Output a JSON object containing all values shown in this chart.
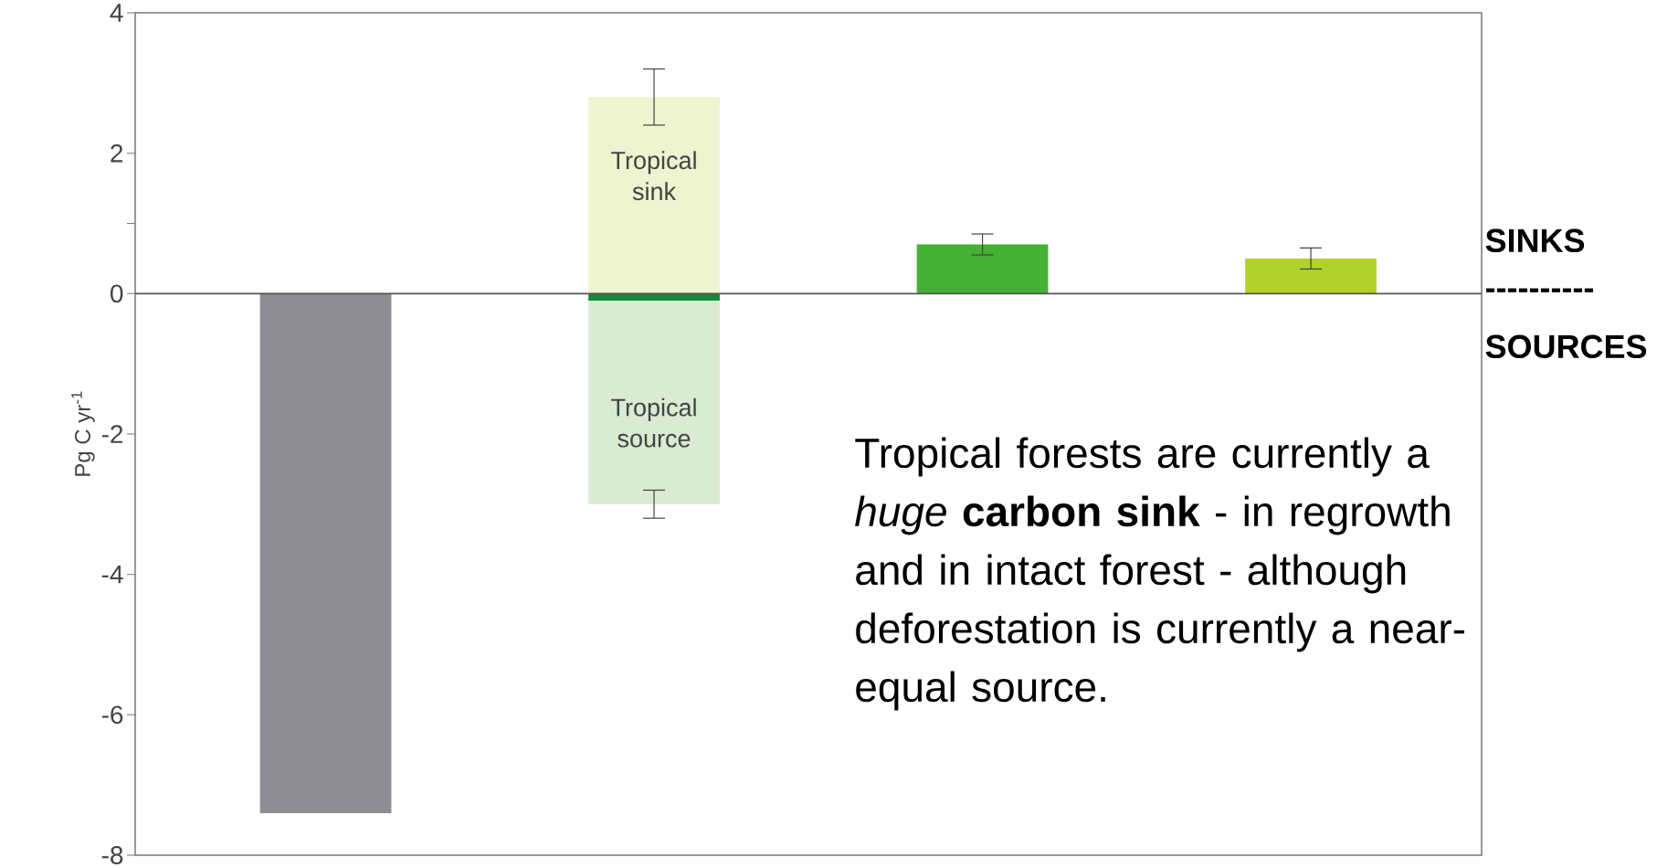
{
  "chart_data": {
    "type": "bar",
    "stacked": true,
    "ylabel": "Pg C yr$^{-1}$",
    "categories": [
      null,
      null,
      null,
      null
    ],
    "ylim": [
      -8,
      4
    ],
    "yticks": [
      -8,
      -6,
      -4,
      -2,
      0,
      {
        "value": 1,
        "label": null
      },
      2,
      4
    ],
    "series": [
      {
        "color": "#8e8d93",
        "values": [
          -7.4,
          null,
          null,
          null
        ]
      },
      {
        "name": "Tropical sink",
        "color": "#eef4cf",
        "values": [
          null,
          2.8,
          null,
          null
        ],
        "errors": [
          null,
          0.4,
          null,
          null
        ]
      },
      {
        "color": "#14893c",
        "values": [
          null,
          -0.1,
          null,
          null
        ]
      },
      {
        "name": "Tropical source",
        "color": "#d9ebd2",
        "values": [
          null,
          -2.9,
          null,
          null
        ],
        "errors": [
          null,
          0.2,
          null,
          null
        ]
      },
      {
        "color": "#45b035",
        "values": [
          null,
          null,
          0.7,
          null
        ],
        "errors": [
          null,
          null,
          0.15,
          null
        ]
      },
      {
        "color": "#b3d12a",
        "values": [
          null,
          null,
          null,
          0.5
        ],
        "errors": [
          null,
          null,
          null,
          0.15
        ]
      }
    ],
    "ref_lines": [
      {
        "axis": "y",
        "value": 0,
        "color": "#555555"
      }
    ],
    "annotations": [
      "Tropical forests are currently a *huge* **carbon sink** - in regrowth and in intact forest - although deforestation is currently a near-equal source.",
      "SINKS",
      "----------",
      "SOURCES"
    ]
  }
}
